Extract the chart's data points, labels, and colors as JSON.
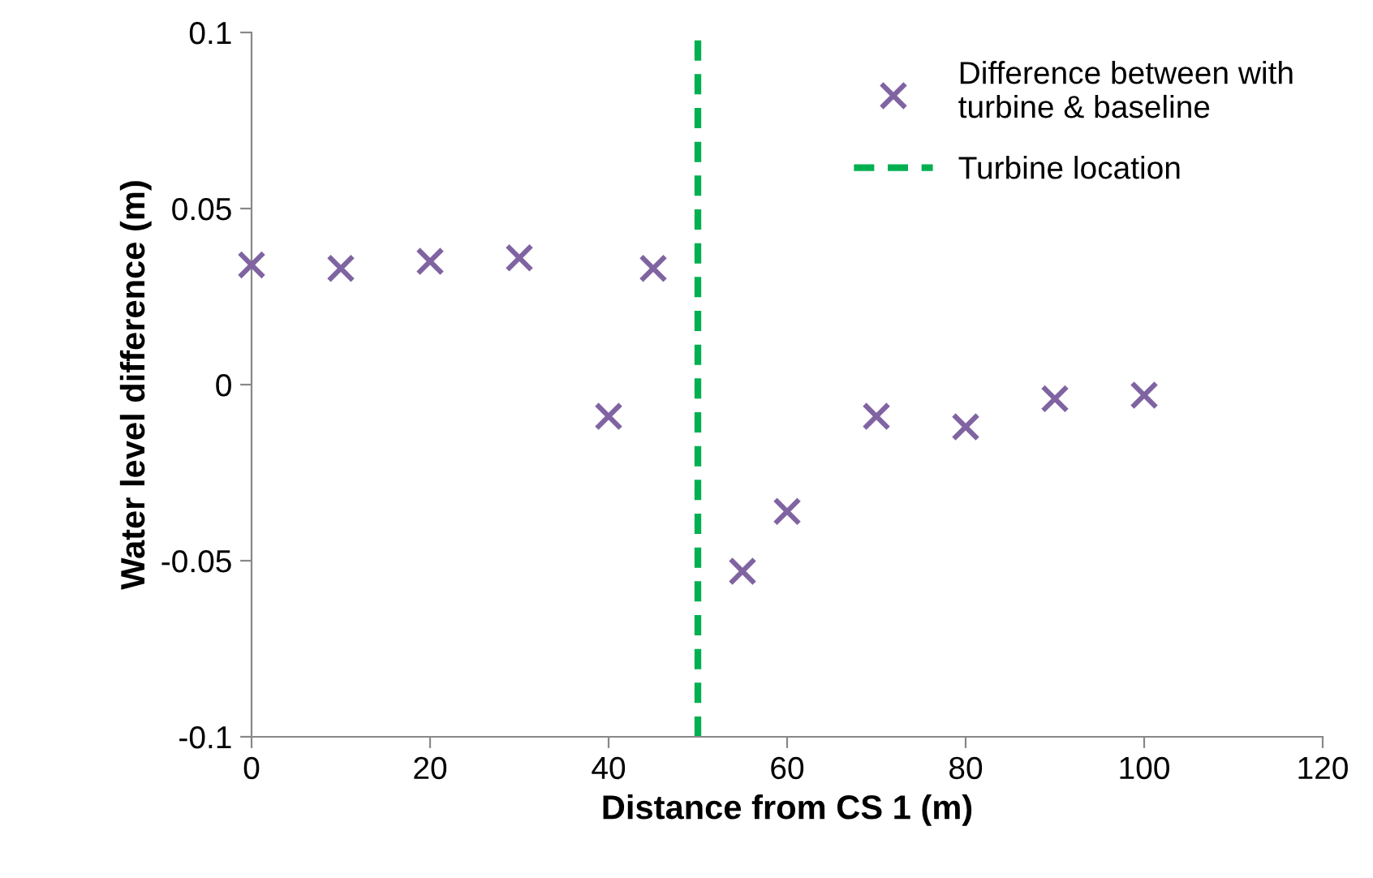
{
  "chart_data": {
    "type": "scatter",
    "xlabel": "Distance from CS 1 (m)",
    "ylabel": "Water level difference (m)",
    "x": [
      0,
      10,
      20,
      30,
      40,
      45,
      55,
      60,
      70,
      80,
      90,
      100
    ],
    "series": [
      {
        "name": "Difference between with\nturbine & baseline",
        "color": "#8064a2",
        "marker": "cross",
        "values": [
          0.034,
          0.033,
          0.035,
          0.036,
          -0.009,
          0.033,
          -0.053,
          -0.036,
          -0.009,
          -0.012,
          -0.004,
          -0.003
        ]
      },
      {
        "name": "Turbine location",
        "type": "line",
        "color": "#00b050",
        "line_style": "dashed",
        "marker": "none",
        "x": [
          50,
          50
        ],
        "values": [
          -0.1,
          0.1
        ]
      }
    ],
    "xlim": [
      0,
      120
    ],
    "xticks": [
      0,
      20,
      40,
      60,
      80,
      100,
      120
    ],
    "ylim": [
      -0.1,
      0.1
    ],
    "yticks": [
      -0.1,
      -0.05,
      0,
      0.05,
      0.1
    ],
    "grid": false,
    "legend": "top right"
  }
}
